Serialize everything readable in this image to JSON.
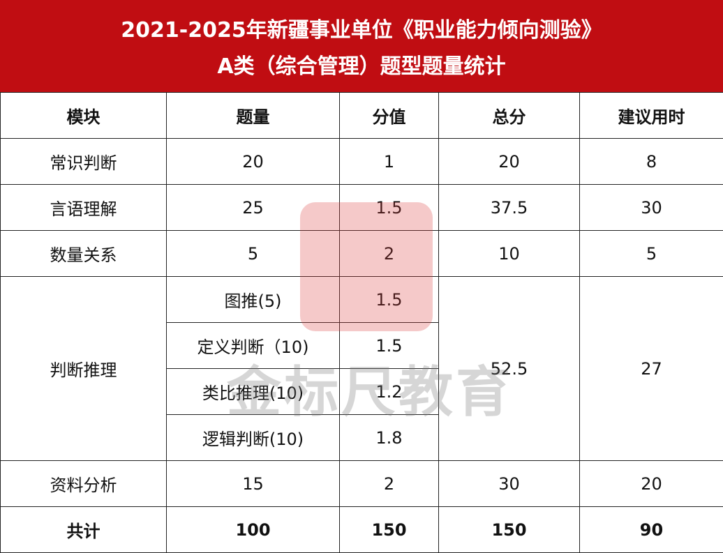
{
  "header": {
    "title_lines": [
      "2021-2025年新疆事业单位《职业能力倾向测验》",
      "A类（综合管理）题型题量统计"
    ]
  },
  "table": {
    "columns": [
      "模块",
      "题量",
      "分值",
      "总分",
      "建议用时"
    ],
    "rows": [
      {
        "module": "常识判断",
        "count": 20,
        "score": 1,
        "total": 20,
        "time": 8
      },
      {
        "module": "言语理解",
        "count": 25,
        "score": 1.5,
        "total": 37.5,
        "time": 30
      },
      {
        "module": "数量关系",
        "count": 5,
        "score": 2,
        "total": 10,
        "time": 5
      },
      {
        "module": "判断推理",
        "parts": [
          {
            "count": "图推(5)",
            "score": 1.5
          },
          {
            "count": "定义判断（10)",
            "score": 1.5
          },
          {
            "count": "类比推理(10)",
            "score": 1.2
          },
          {
            "count": "逻辑判断(10)",
            "score": 1.8
          }
        ],
        "total": 52.5,
        "time": 27
      },
      {
        "module": "资料分析",
        "count": 15,
        "score": 2,
        "total": 30,
        "time": 20
      }
    ],
    "sum": {
      "module": "共计",
      "count": 100,
      "score": 150,
      "total": 150,
      "time": 90
    }
  },
  "watermark": "金标尺教育"
}
